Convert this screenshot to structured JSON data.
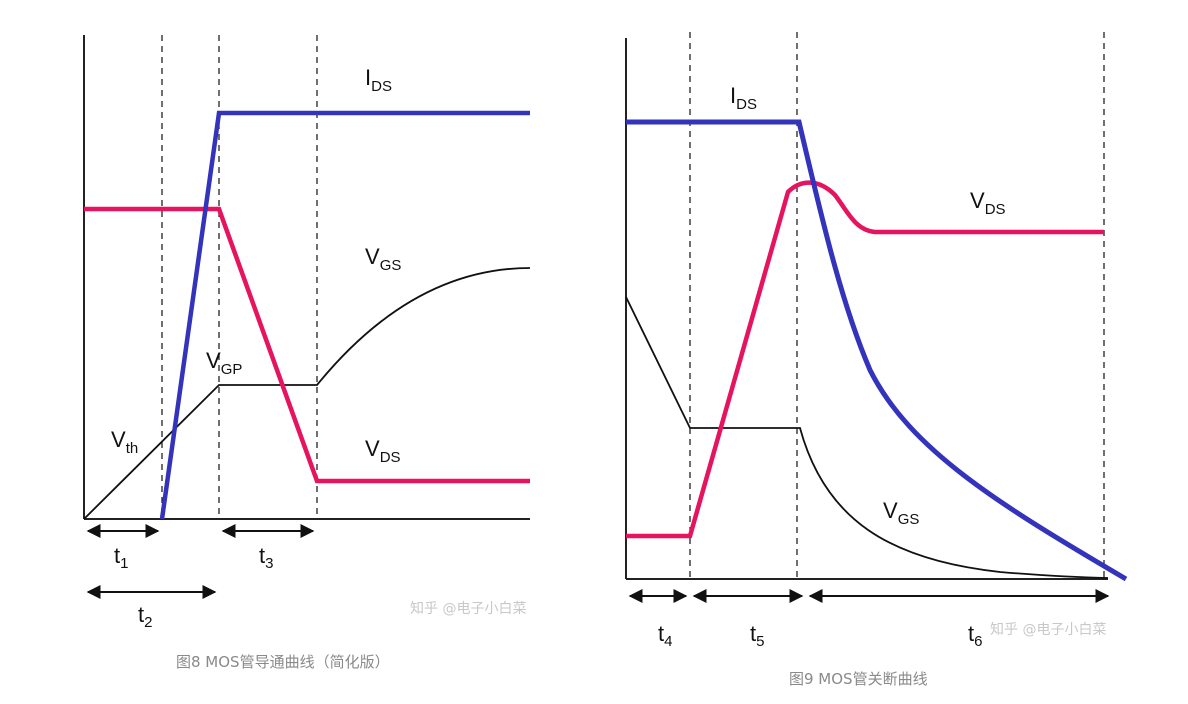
{
  "colors": {
    "ids": "#3333bb",
    "vds": "#e6145e",
    "vgs": "#111111",
    "axis": "#222222",
    "bg": "#ffffff"
  },
  "fig8": {
    "ids": "I",
    "ids_sub": "DS",
    "vgs": "V",
    "vgs_sub": "GS",
    "vgp": "V",
    "vgp_sub": "GP",
    "vth": "V",
    "vth_sub": "th",
    "vds": "V",
    "vds_sub": "DS",
    "t1": "t",
    "t1_sub": "1",
    "t2": "t",
    "t2_sub": "2",
    "t3": "t",
    "t3_sub": "3",
    "watermark": "知乎 @电子小白菜",
    "caption": "图8 MOS管导通曲线（简化版）"
  },
  "fig9": {
    "ids": "I",
    "ids_sub": "DS",
    "vds": "V",
    "vds_sub": "DS",
    "vgs": "V",
    "vgs_sub": "GS",
    "t4": "t",
    "t4_sub": "4",
    "t5": "t",
    "t5_sub": "5",
    "t6": "t",
    "t6_sub": "6",
    "watermark": "知乎 @电子小白菜",
    "caption": "图9 MOS管关断曲线"
  }
}
